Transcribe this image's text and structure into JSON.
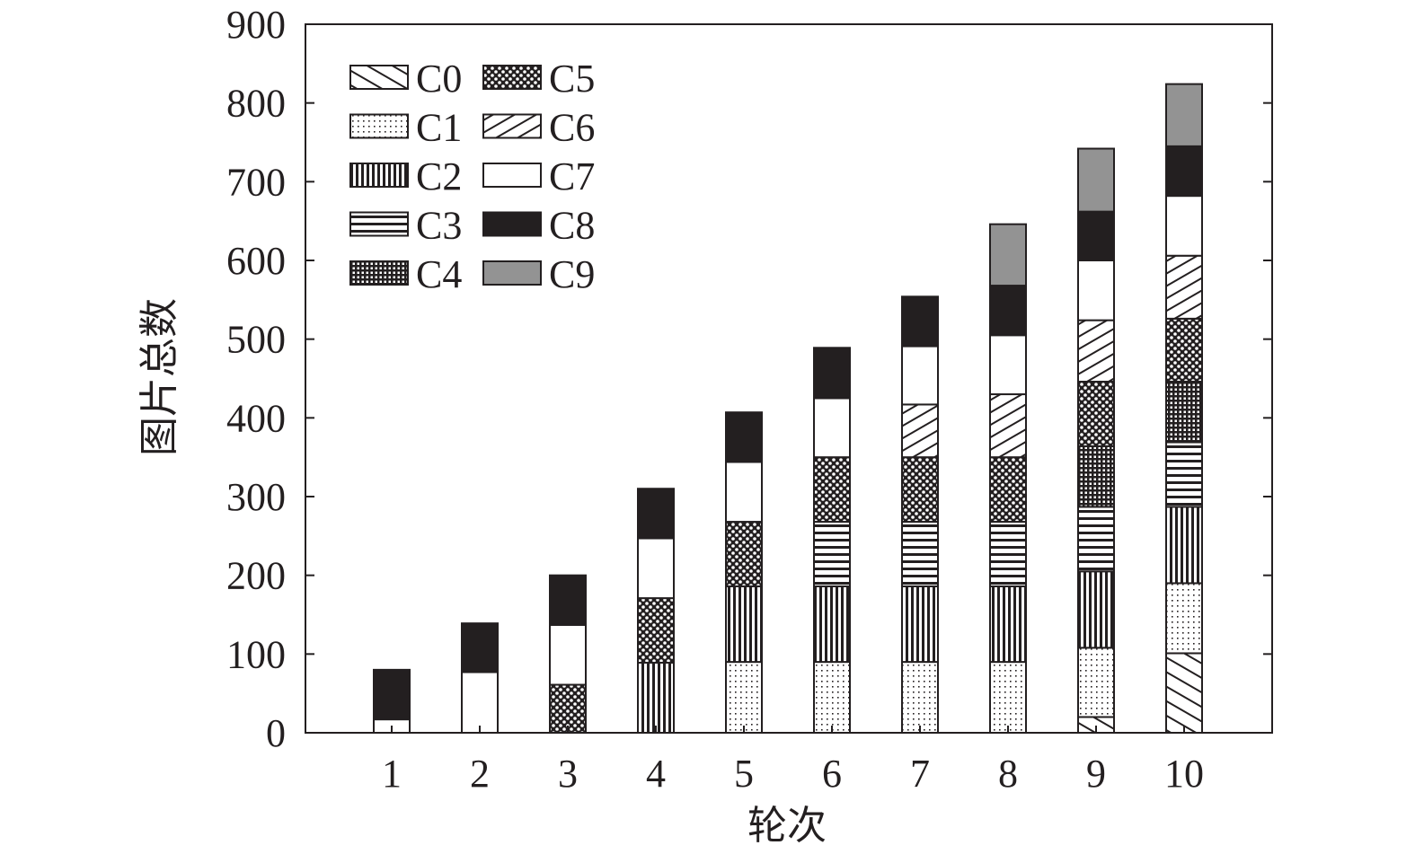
{
  "chart_data": {
    "type": "bar",
    "stacked": true,
    "title": "",
    "xlabel": "轮次",
    "ylabel": "图片总数",
    "categories": [
      "1",
      "2",
      "3",
      "4",
      "5",
      "6",
      "7",
      "8",
      "9",
      "10"
    ],
    "ylim": [
      0,
      900
    ],
    "yticks": [
      0,
      100,
      200,
      300,
      400,
      500,
      600,
      700,
      800,
      900
    ],
    "grid": false,
    "legend_position": "top-left",
    "series": [
      {
        "name": "C0",
        "pattern": "diagonal-up",
        "values": [
          0,
          0,
          0,
          0,
          0,
          0,
          0,
          0,
          20,
          101
        ]
      },
      {
        "name": "C1",
        "pattern": "dots",
        "values": [
          0,
          0,
          0,
          0,
          90,
          90,
          90,
          90,
          88,
          89
        ]
      },
      {
        "name": "C2",
        "pattern": "vertical-lines",
        "values": [
          0,
          0,
          0,
          89,
          96,
          96,
          96,
          96,
          97,
          97
        ]
      },
      {
        "name": "C3",
        "pattern": "horizontal-lines",
        "values": [
          0,
          0,
          0,
          0,
          0,
          82,
          82,
          82,
          82,
          82
        ]
      },
      {
        "name": "C4",
        "pattern": "grid",
        "values": [
          0,
          0,
          0,
          0,
          0,
          0,
          0,
          0,
          77,
          77
        ]
      },
      {
        "name": "C5",
        "pattern": "crosshatch",
        "values": [
          0,
          0,
          61,
          82,
          82,
          82,
          82,
          82,
          82,
          80
        ]
      },
      {
        "name": "C6",
        "pattern": "diagonal-down",
        "values": [
          0,
          0,
          0,
          0,
          0,
          0,
          67,
          80,
          78,
          80
        ]
      },
      {
        "name": "C7",
        "pattern": "white",
        "values": [
          17,
          77,
          76,
          76,
          76,
          75,
          74,
          75,
          76,
          76
        ]
      },
      {
        "name": "C8",
        "pattern": "black",
        "values": [
          63,
          62,
          63,
          63,
          63,
          64,
          63,
          63,
          62,
          63
        ]
      },
      {
        "name": "C9",
        "pattern": "gray",
        "values": [
          0,
          0,
          0,
          0,
          0,
          0,
          0,
          78,
          80,
          79
        ]
      }
    ],
    "colors": {
      "axis": "#231f20",
      "C8": "#231f20",
      "C9": "#939393",
      "C7": "#ffffff"
    }
  }
}
